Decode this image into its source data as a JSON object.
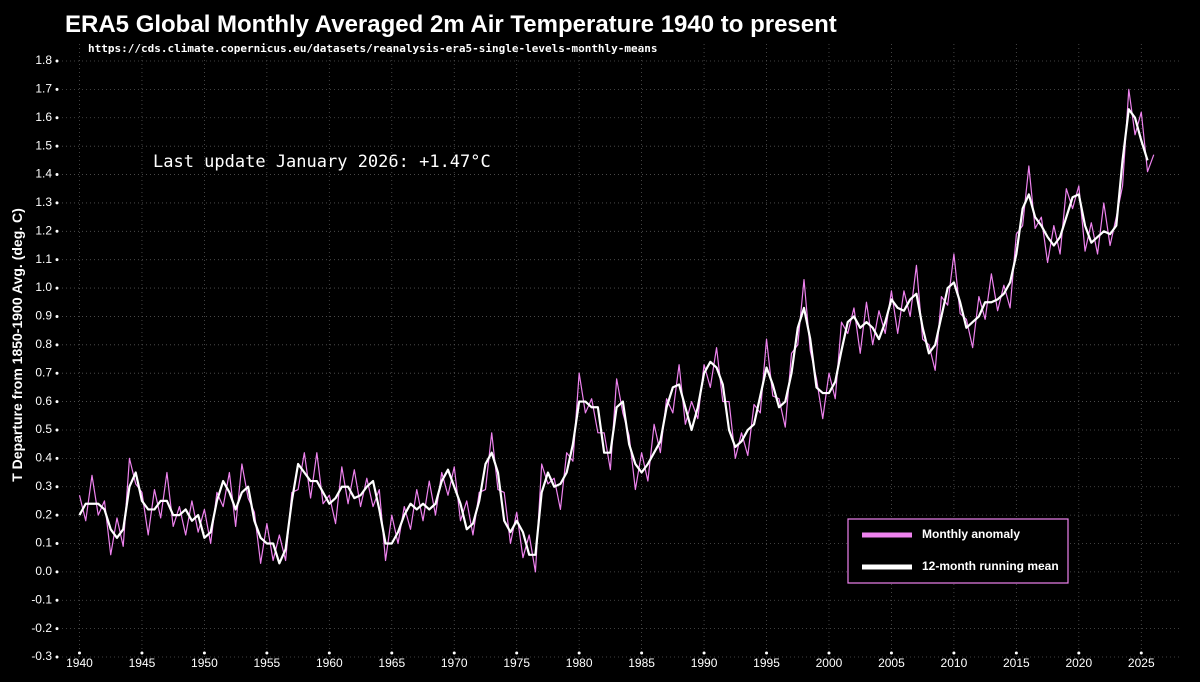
{
  "chart_data": {
    "type": "line",
    "title": "ERA5 Global Monthly Averaged 2m Air Temperature 1940 to present",
    "subtitle": "https://cds.climate.copernicus.eu/datasets/reanalysis-era5-single-levels-monthly-means",
    "annotation": "Last update January 2026: +1.47°C",
    "y_label": "T Departure from 1850-1900 Avg. (deg. C)",
    "x": [
      1940,
      1940.5,
      1941,
      1941.5,
      1942,
      1942.5,
      1943,
      1943.5,
      1944,
      1944.5,
      1945,
      1945.5,
      1946,
      1946.5,
      1947,
      1947.5,
      1948,
      1948.5,
      1949,
      1949.5,
      1950,
      1950.5,
      1951,
      1951.5,
      1952,
      1952.5,
      1953,
      1953.5,
      1954,
      1954.5,
      1955,
      1955.5,
      1956,
      1956.5,
      1957,
      1957.5,
      1958,
      1958.5,
      1959,
      1959.5,
      1960,
      1960.5,
      1961,
      1961.5,
      1962,
      1962.5,
      1963,
      1963.5,
      1964,
      1964.5,
      1965,
      1965.5,
      1966,
      1966.5,
      1967,
      1967.5,
      1968,
      1968.5,
      1969,
      1969.5,
      1970,
      1970.5,
      1971,
      1971.5,
      1972,
      1972.5,
      1973,
      1973.5,
      1974,
      1974.5,
      1975,
      1975.5,
      1976,
      1976.5,
      1977,
      1977.5,
      1978,
      1978.5,
      1979,
      1979.5,
      1980,
      1980.5,
      1981,
      1981.5,
      1982,
      1982.5,
      1983,
      1983.5,
      1984,
      1984.5,
      1985,
      1985.5,
      1986,
      1986.5,
      1987,
      1987.5,
      1988,
      1988.5,
      1989,
      1989.5,
      1990,
      1990.5,
      1991,
      1991.5,
      1992,
      1992.5,
      1993,
      1993.5,
      1994,
      1994.5,
      1995,
      1995.5,
      1996,
      1996.5,
      1997,
      1997.5,
      1998,
      1998.5,
      1999,
      1999.5,
      2000,
      2000.5,
      2001,
      2001.5,
      2002,
      2002.5,
      2003,
      2003.5,
      2004,
      2004.5,
      2005,
      2005.5,
      2006,
      2006.5,
      2007,
      2007.5,
      2008,
      2008.5,
      2009,
      2009.5,
      2010,
      2010.5,
      2011,
      2011.5,
      2012,
      2012.5,
      2013,
      2013.5,
      2014,
      2014.5,
      2015,
      2015.5,
      2016,
      2016.5,
      2017,
      2017.5,
      2018,
      2018.5,
      2019,
      2019.5,
      2020,
      2020.5,
      2021,
      2021.5,
      2022,
      2022.5,
      2023,
      2023.5,
      2024,
      2024.5,
      2025,
      2025.5,
      2026
    ],
    "series": [
      {
        "name": "Monthly anomaly",
        "color": "#ee82ee",
        "width": 1.2,
        "values": [
          0.27,
          0.18,
          0.34,
          0.2,
          0.25,
          0.06,
          0.19,
          0.09,
          0.4,
          0.31,
          0.28,
          0.13,
          0.29,
          0.19,
          0.35,
          0.16,
          0.23,
          0.13,
          0.25,
          0.14,
          0.22,
          0.1,
          0.28,
          0.23,
          0.35,
          0.16,
          0.38,
          0.26,
          0.21,
          0.03,
          0.17,
          0.04,
          0.13,
          0.04,
          0.28,
          0.29,
          0.42,
          0.26,
          0.42,
          0.24,
          0.27,
          0.17,
          0.37,
          0.24,
          0.36,
          0.23,
          0.33,
          0.23,
          0.29,
          0.04,
          0.2,
          0.1,
          0.23,
          0.15,
          0.29,
          0.18,
          0.32,
          0.2,
          0.35,
          0.27,
          0.37,
          0.18,
          0.25,
          0.13,
          0.28,
          0.29,
          0.49,
          0.29,
          0.28,
          0.1,
          0.21,
          0.05,
          0.13,
          0.0,
          0.38,
          0.31,
          0.33,
          0.22,
          0.42,
          0.39,
          0.7,
          0.56,
          0.61,
          0.49,
          0.49,
          0.36,
          0.68,
          0.56,
          0.48,
          0.29,
          0.42,
          0.32,
          0.52,
          0.42,
          0.61,
          0.56,
          0.73,
          0.52,
          0.6,
          0.54,
          0.73,
          0.65,
          0.79,
          0.6,
          0.6,
          0.4,
          0.49,
          0.41,
          0.59,
          0.56,
          0.82,
          0.62,
          0.61,
          0.51,
          0.77,
          0.8,
          1.03,
          0.78,
          0.68,
          0.54,
          0.7,
          0.61,
          0.88,
          0.84,
          0.93,
          0.77,
          0.95,
          0.8,
          0.92,
          0.84,
          0.99,
          0.84,
          0.99,
          0.9,
          1.08,
          0.82,
          0.8,
          0.71,
          0.97,
          0.94,
          1.12,
          0.91,
          0.89,
          0.79,
          0.97,
          0.89,
          1.05,
          0.92,
          1.01,
          0.93,
          1.19,
          1.22,
          1.43,
          1.21,
          1.25,
          1.09,
          1.22,
          1.12,
          1.35,
          1.28,
          1.36,
          1.13,
          1.23,
          1.12,
          1.3,
          1.15,
          1.25,
          1.36,
          1.7,
          1.54,
          1.62,
          1.41,
          1.47
        ]
      },
      {
        "name": "12-month running mean",
        "color": "#ffffff",
        "width": 2.2,
        "values": [
          0.2,
          0.24,
          0.24,
          0.24,
          0.22,
          0.15,
          0.12,
          0.15,
          0.3,
          0.35,
          0.25,
          0.22,
          0.22,
          0.25,
          0.25,
          0.2,
          0.2,
          0.22,
          0.18,
          0.2,
          0.12,
          0.14,
          0.25,
          0.32,
          0.28,
          0.22,
          0.28,
          0.3,
          0.18,
          0.12,
          0.1,
          0.1,
          0.03,
          0.08,
          0.25,
          0.38,
          0.35,
          0.32,
          0.32,
          0.28,
          0.24,
          0.26,
          0.3,
          0.3,
          0.26,
          0.27,
          0.3,
          0.32,
          0.22,
          0.1,
          0.1,
          0.14,
          0.2,
          0.24,
          0.22,
          0.24,
          0.22,
          0.24,
          0.32,
          0.36,
          0.3,
          0.24,
          0.15,
          0.17,
          0.25,
          0.38,
          0.42,
          0.35,
          0.18,
          0.14,
          0.18,
          0.14,
          0.06,
          0.06,
          0.28,
          0.35,
          0.3,
          0.31,
          0.35,
          0.45,
          0.6,
          0.6,
          0.58,
          0.58,
          0.42,
          0.42,
          0.58,
          0.6,
          0.45,
          0.38,
          0.35,
          0.38,
          0.42,
          0.46,
          0.58,
          0.65,
          0.66,
          0.58,
          0.5,
          0.58,
          0.7,
          0.74,
          0.72,
          0.66,
          0.5,
          0.44,
          0.46,
          0.5,
          0.52,
          0.62,
          0.72,
          0.66,
          0.58,
          0.6,
          0.7,
          0.86,
          0.93,
          0.82,
          0.65,
          0.63,
          0.63,
          0.67,
          0.78,
          0.88,
          0.9,
          0.86,
          0.88,
          0.86,
          0.82,
          0.88,
          0.96,
          0.93,
          0.92,
          0.96,
          0.98,
          0.86,
          0.77,
          0.8,
          0.9,
          1.0,
          1.02,
          0.95,
          0.86,
          0.88,
          0.9,
          0.95,
          0.95,
          0.96,
          0.98,
          1.02,
          1.12,
          1.28,
          1.33,
          1.25,
          1.22,
          1.18,
          1.15,
          1.18,
          1.25,
          1.32,
          1.33,
          1.22,
          1.16,
          1.18,
          1.2,
          1.19,
          1.22,
          1.45,
          1.63,
          1.6,
          1.52,
          1.45,
          null
        ]
      }
    ],
    "xlim": [
      1938.6,
      2028.1
    ],
    "xticks": [
      1940,
      1945,
      1950,
      1955,
      1960,
      1965,
      1970,
      1975,
      1980,
      1985,
      1990,
      1995,
      2000,
      2005,
      2010,
      2015,
      2020,
      2025
    ],
    "ylim": [
      -0.3,
      1.86
    ],
    "yticks": [
      -0.3,
      -0.2,
      -0.1,
      {
        "value": 0,
        "label": "0.0"
      },
      0.1,
      0.2,
      0.3,
      0.4,
      0.5,
      0.6,
      0.7,
      0.8,
      0.9,
      {
        "value": 1,
        "label": "1.0"
      },
      1.1,
      1.2,
      1.3,
      1.4,
      1.5,
      1.6,
      1.7,
      1.8
    ],
    "grid": true,
    "legend": "lower right"
  }
}
